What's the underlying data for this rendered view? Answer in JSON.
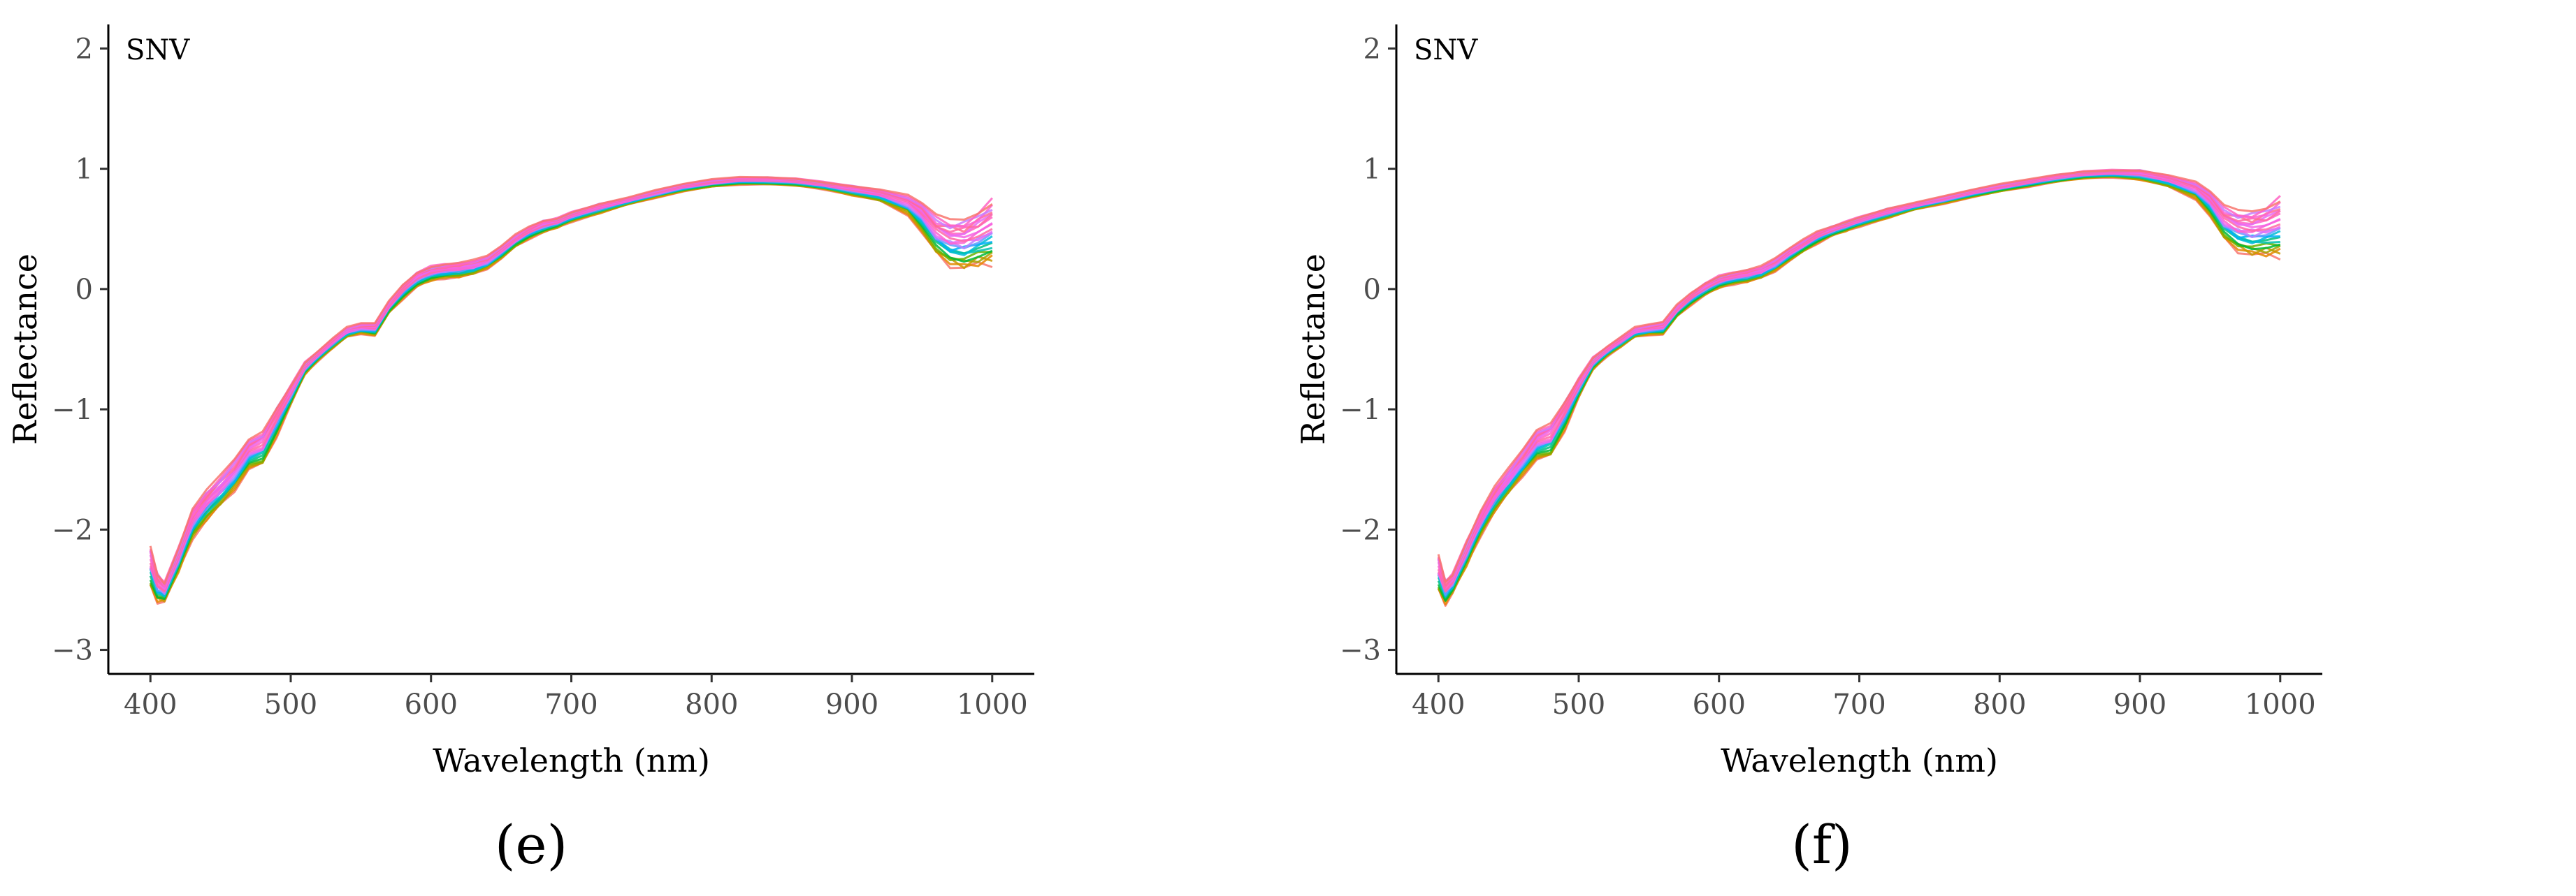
{
  "chart_data": [
    {
      "type": "line",
      "panel_label": "(e)",
      "tag": "SNV",
      "xlabel": "Wavelength (nm)",
      "ylabel": "Reflectance",
      "xlim": [
        370,
        1030
      ],
      "ylim": [
        -3.2,
        2.2
      ],
      "xticks": [
        400,
        500,
        600,
        700,
        800,
        900,
        1000
      ],
      "yticks": [
        -3,
        -2,
        -1,
        0,
        1,
        2
      ],
      "ytick_labels": [
        "−3",
        "−2",
        "−1",
        "0",
        "1",
        "2"
      ],
      "grid": false,
      "legend": "none",
      "series_count": 24,
      "x": [
        400,
        405,
        410,
        420,
        430,
        440,
        450,
        460,
        470,
        480,
        490,
        500,
        510,
        520,
        530,
        540,
        550,
        560,
        570,
        580,
        590,
        600,
        610,
        620,
        630,
        640,
        650,
        660,
        670,
        680,
        690,
        700,
        720,
        740,
        760,
        780,
        800,
        820,
        840,
        860,
        880,
        900,
        920,
        940,
        950,
        960,
        970,
        980,
        990,
        1000
      ],
      "mean": [
        -2.3,
        -2.48,
        -2.52,
        -2.25,
        -1.95,
        -1.8,
        -1.68,
        -1.55,
        -1.38,
        -1.32,
        -1.1,
        -0.88,
        -0.66,
        -0.55,
        -0.45,
        -0.36,
        -0.33,
        -0.34,
        -0.15,
        -0.02,
        0.08,
        0.13,
        0.15,
        0.16,
        0.18,
        0.22,
        0.3,
        0.4,
        0.47,
        0.52,
        0.55,
        0.6,
        0.67,
        0.73,
        0.79,
        0.84,
        0.88,
        0.9,
        0.9,
        0.89,
        0.86,
        0.82,
        0.78,
        0.7,
        0.58,
        0.45,
        0.38,
        0.37,
        0.42,
        0.48
      ],
      "spread": [
        0.18,
        0.12,
        0.08,
        0.1,
        0.12,
        0.12,
        0.12,
        0.12,
        0.12,
        0.14,
        0.12,
        0.08,
        0.05,
        0.04,
        0.04,
        0.04,
        0.04,
        0.05,
        0.05,
        0.06,
        0.06,
        0.06,
        0.06,
        0.06,
        0.06,
        0.05,
        0.05,
        0.05,
        0.05,
        0.05,
        0.04,
        0.04,
        0.04,
        0.03,
        0.03,
        0.03,
        0.03,
        0.03,
        0.03,
        0.03,
        0.03,
        0.04,
        0.05,
        0.08,
        0.12,
        0.15,
        0.18,
        0.2,
        0.22,
        0.26
      ],
      "colors": [
        "#F8766D",
        "#E58700",
        "#C99800",
        "#A3A500",
        "#6BB100",
        "#00BA38",
        "#00BF7D",
        "#00C0AF",
        "#00BCD8",
        "#00B0F6",
        "#619CFF",
        "#B983FF",
        "#E76BF3",
        "#FD61D1",
        "#FF67A4",
        "#FF61C3",
        "#F564E3",
        "#E76BF3",
        "#FF67A4",
        "#FF6C91",
        "#FD61D1",
        "#C77CFF",
        "#FF61C3",
        "#F8766D"
      ]
    },
    {
      "type": "line",
      "panel_label": "(f)",
      "tag": "SNV",
      "xlabel": "Wavelength (nm)",
      "ylabel": "Reflectance",
      "xlim": [
        370,
        1030
      ],
      "ylim": [
        -3.2,
        2.2
      ],
      "xticks": [
        400,
        500,
        600,
        700,
        800,
        900,
        1000
      ],
      "yticks": [
        -3,
        -2,
        -1,
        0,
        1,
        2
      ],
      "ytick_labels": [
        "−3",
        "−2",
        "−1",
        "0",
        "1",
        "2"
      ],
      "grid": false,
      "legend": "none",
      "series_count": 24,
      "x": [
        400,
        405,
        410,
        420,
        430,
        440,
        450,
        460,
        470,
        480,
        490,
        500,
        510,
        520,
        530,
        540,
        550,
        560,
        570,
        580,
        590,
        600,
        610,
        620,
        630,
        640,
        650,
        660,
        670,
        680,
        690,
        700,
        720,
        740,
        760,
        780,
        800,
        820,
        840,
        860,
        880,
        900,
        920,
        940,
        950,
        960,
        970,
        980,
        990,
        1000
      ],
      "mean": [
        -2.35,
        -2.52,
        -2.45,
        -2.2,
        -1.95,
        -1.75,
        -1.6,
        -1.45,
        -1.3,
        -1.25,
        -1.05,
        -0.82,
        -0.62,
        -0.52,
        -0.44,
        -0.36,
        -0.34,
        -0.33,
        -0.18,
        -0.08,
        0.0,
        0.06,
        0.09,
        0.11,
        0.14,
        0.2,
        0.28,
        0.36,
        0.43,
        0.48,
        0.52,
        0.56,
        0.63,
        0.69,
        0.74,
        0.79,
        0.84,
        0.88,
        0.92,
        0.95,
        0.96,
        0.95,
        0.9,
        0.82,
        0.7,
        0.55,
        0.48,
        0.46,
        0.48,
        0.52
      ],
      "spread": [
        0.16,
        0.1,
        0.08,
        0.1,
        0.1,
        0.1,
        0.1,
        0.1,
        0.12,
        0.14,
        0.12,
        0.08,
        0.05,
        0.04,
        0.04,
        0.04,
        0.04,
        0.05,
        0.05,
        0.05,
        0.05,
        0.05,
        0.05,
        0.05,
        0.05,
        0.05,
        0.05,
        0.05,
        0.05,
        0.04,
        0.04,
        0.04,
        0.04,
        0.03,
        0.03,
        0.03,
        0.03,
        0.03,
        0.03,
        0.03,
        0.03,
        0.04,
        0.05,
        0.07,
        0.1,
        0.13,
        0.16,
        0.18,
        0.2,
        0.24
      ],
      "colors": [
        "#F8766D",
        "#E58700",
        "#C99800",
        "#A3A500",
        "#6BB100",
        "#00BA38",
        "#00BF7D",
        "#00C0AF",
        "#00BCD8",
        "#00B0F6",
        "#619CFF",
        "#B983FF",
        "#E76BF3",
        "#FD61D1",
        "#FF67A4",
        "#FF61C3",
        "#F564E3",
        "#E76BF3",
        "#FF67A4",
        "#FF6C91",
        "#FD61D1",
        "#C77CFF",
        "#FF61C3",
        "#F8766D"
      ]
    }
  ]
}
